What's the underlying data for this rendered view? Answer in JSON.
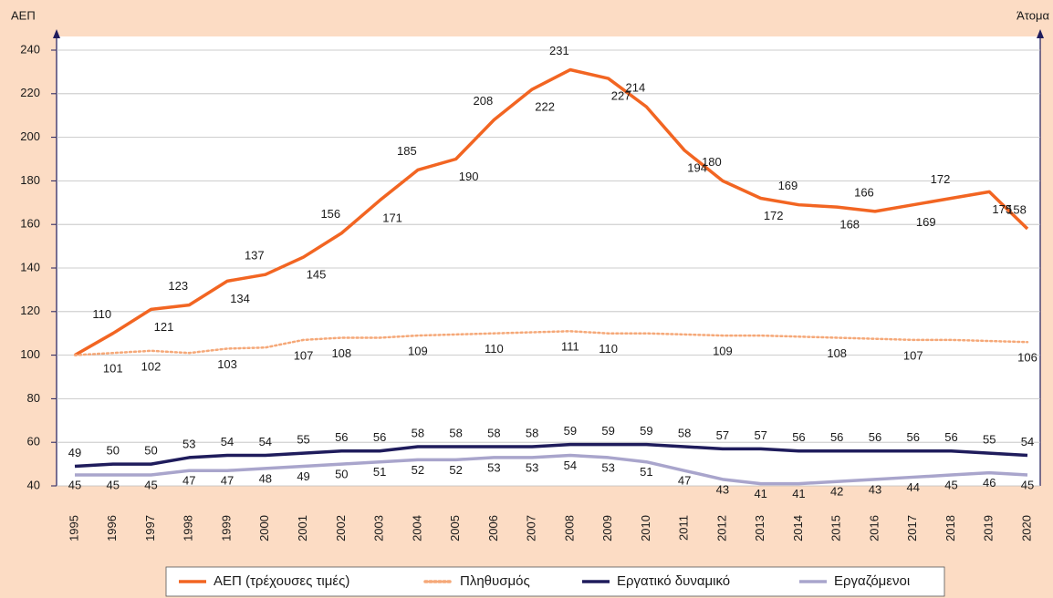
{
  "chart_data": {
    "type": "line",
    "y_axis_label": "ΑΕΠ",
    "y2_axis_label": "Άτομα",
    "categories": [
      "1995",
      "1996",
      "1997",
      "1998",
      "1999",
      "2000",
      "2001",
      "2002",
      "2003",
      "2004",
      "2005",
      "2006",
      "2007",
      "2008",
      "2009",
      "2010",
      "2011",
      "2012",
      "2013",
      "2014",
      "2015",
      "2016",
      "2017",
      "2018",
      "2019",
      "2020"
    ],
    "ylim": [
      40,
      240
    ],
    "yticks": [
      40,
      60,
      80,
      100,
      120,
      140,
      160,
      180,
      200,
      220,
      240
    ],
    "grid": true,
    "legend": "bottom",
    "series": [
      {
        "name": "ΑΕΠ (τρέχουσες τιμές)",
        "color": "#f26522",
        "style": "solid",
        "values": [
          100,
          110,
          121,
          123,
          134,
          137,
          145,
          156,
          171,
          185,
          190,
          208,
          222,
          231,
          227,
          214,
          194,
          180,
          172,
          169,
          168,
          166,
          169,
          172,
          175,
          158
        ],
        "value_labels": [
          null,
          "110",
          "121",
          "123",
          "134",
          "137",
          "145",
          "156",
          "171",
          "185",
          "190",
          "208",
          "222",
          "231",
          "227",
          "214",
          "194",
          "180",
          "172",
          "169",
          "168",
          "166",
          "169",
          "172",
          "175",
          "158"
        ]
      },
      {
        "name": "Πληθυσμός",
        "color": "#f5a878",
        "style": "dotted",
        "values": [
          100,
          101,
          102,
          101,
          103,
          103.5,
          107,
          108,
          108,
          109,
          109.5,
          110,
          110.5,
          111,
          110,
          110,
          109.5,
          109,
          109,
          108.5,
          108,
          107.5,
          107,
          107,
          106.5,
          106
        ],
        "value_labels": [
          null,
          "101",
          "102",
          null,
          "103",
          null,
          "107",
          "108",
          null,
          "109",
          null,
          "110",
          null,
          "111",
          "110",
          null,
          null,
          "109",
          null,
          null,
          "108",
          null,
          "107",
          null,
          null,
          "106"
        ]
      },
      {
        "name": "Εργατικό δυναμικό",
        "color": "#1f1c5c",
        "style": "solid",
        "values": [
          49,
          50,
          50,
          53,
          54,
          54,
          55,
          56,
          56,
          58,
          58,
          58,
          58,
          59,
          59,
          59,
          58,
          57,
          57,
          56,
          56,
          56,
          56,
          56,
          55,
          54
        ],
        "value_labels": [
          "49",
          "50",
          "50",
          "53",
          "54",
          "54",
          "55",
          "56",
          "56",
          "58",
          "58",
          "58",
          "58",
          "59",
          "59",
          "59",
          "58",
          "57",
          "57",
          "56",
          "56",
          "56",
          "56",
          "56",
          "55",
          "54"
        ]
      },
      {
        "name": "Εργαζόμενοι",
        "color": "#a9a5cc",
        "style": "solid",
        "values": [
          45,
          45,
          45,
          47,
          47,
          48,
          49,
          50,
          51,
          52,
          52,
          53,
          53,
          54,
          53,
          51,
          47,
          43,
          41,
          41,
          42,
          43,
          44,
          45,
          46,
          45
        ],
        "value_labels": [
          "45",
          "45",
          "45",
          "47",
          "47",
          "48",
          "49",
          "50",
          "51",
          "52",
          "52",
          "53",
          "53",
          "54",
          "53",
          "51",
          "47",
          "43",
          "41",
          "41",
          "42",
          "43",
          "44",
          "45",
          "46",
          "45"
        ]
      }
    ]
  }
}
